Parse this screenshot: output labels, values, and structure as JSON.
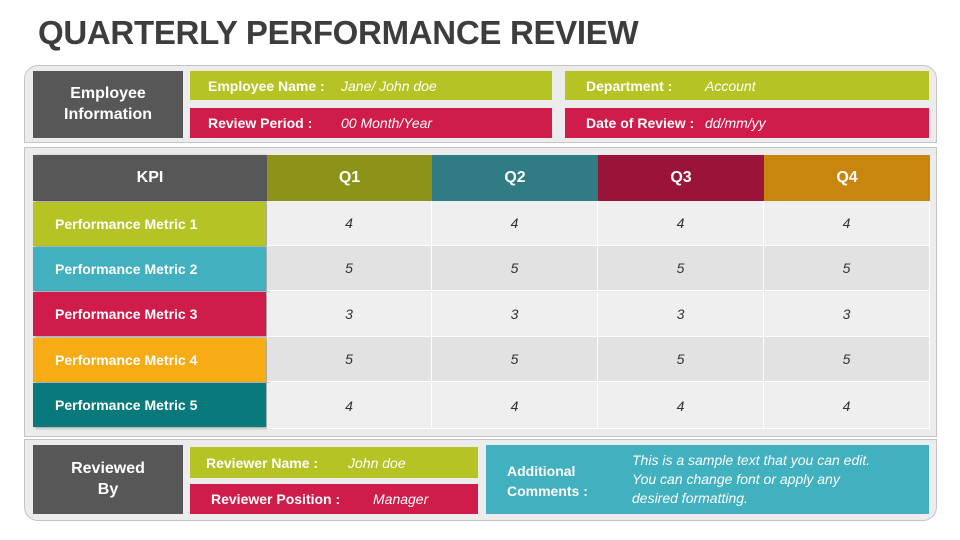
{
  "title": "QUARTERLY PERFORMANCE REVIEW",
  "employee": {
    "heading_line1": "Employee",
    "heading_line2": "Information",
    "name_label": "Employee Name :",
    "name_value": "Jane/ John doe",
    "department_label": "Department :",
    "department_value": "Account",
    "period_label": "Review Period :",
    "period_value": "00 Month/Year",
    "date_label": "Date of Review :",
    "date_value": "dd/mm/yy"
  },
  "table": {
    "headers": [
      "KPI",
      "Q1",
      "Q2",
      "Q3",
      "Q4"
    ],
    "header_colors": [
      "#575757",
      "#8d9319",
      "#2f7c85",
      "#9a1338",
      "#c8860e"
    ],
    "rows": [
      {
        "label": "Performance Metric 1",
        "color": "#b5c424",
        "values": [
          "4",
          "4",
          "4",
          "4"
        ]
      },
      {
        "label": "Performance Metric 2",
        "color": "#41b0bf",
        "values": [
          "5",
          "5",
          "5",
          "5"
        ]
      },
      {
        "label": "Performance Metric 3",
        "color": "#cf1c4b",
        "values": [
          "3",
          "3",
          "3",
          "3"
        ]
      },
      {
        "label": "Performance Metric 4",
        "color": "#f7ac15",
        "values": [
          "5",
          "5",
          "5",
          "5"
        ]
      },
      {
        "label": "Performance Metric 5",
        "color": "#087a7b",
        "values": [
          "4",
          "4",
          "4",
          "4"
        ]
      }
    ]
  },
  "reviewer": {
    "heading_line1": "Reviewed",
    "heading_line2": "By",
    "name_label": "Reviewer Name :",
    "name_value": "John doe",
    "position_label": "Reviewer Position :",
    "position_value": "Manager"
  },
  "comments": {
    "label_line1": "Additional",
    "label_line2": "Comments :",
    "text_line1": "This is a sample text that you can edit.",
    "text_line2": "You can change font or apply any",
    "text_line3": "desired formatting."
  },
  "colors": {
    "lime": "#b5c424",
    "crimson": "#cf1c4b",
    "teal": "#41b0bf",
    "dark_gray": "#575757"
  }
}
